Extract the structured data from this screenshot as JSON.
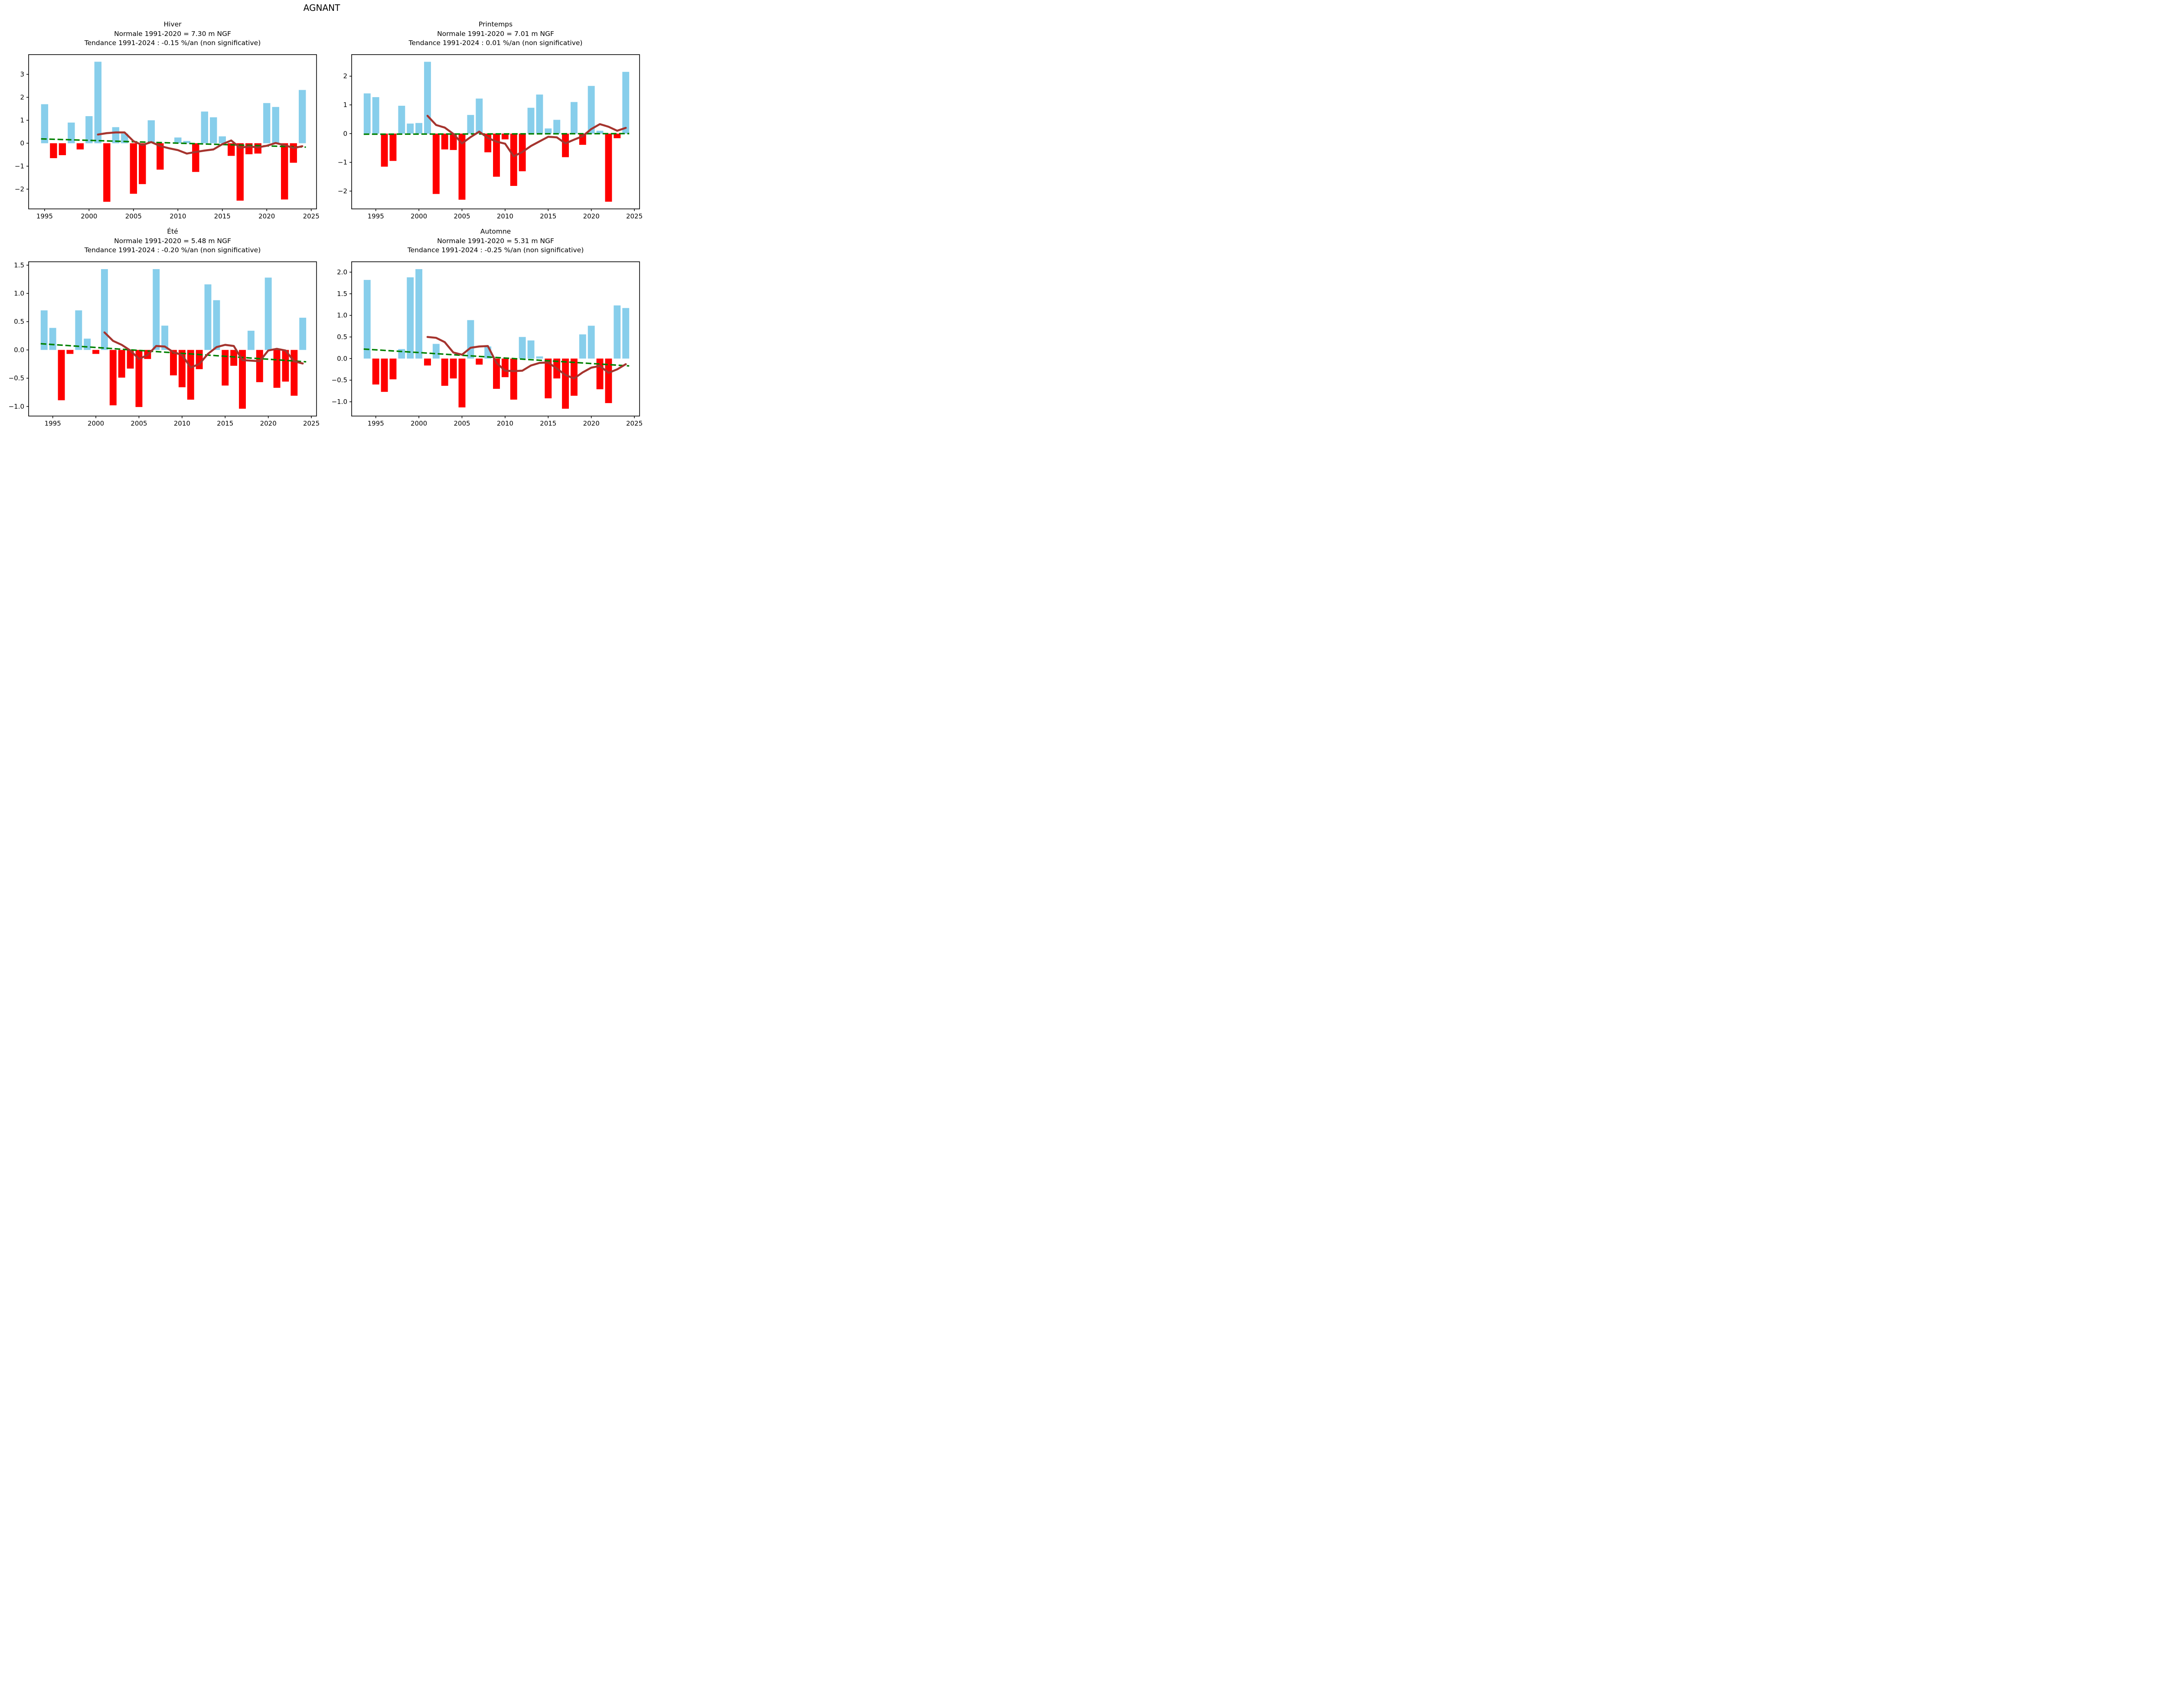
{
  "title": "AGNANT",
  "colors": {
    "positive_bar": "#87CEEB",
    "negative_bar": "#FF0000",
    "moving_average_line": "#A5342E",
    "trend_line": "#008000",
    "axis": "#000000",
    "background": "#FFFFFF"
  },
  "chart_data": [
    {
      "type": "bar",
      "season": "Hiver",
      "title_lines": [
        "Hiver",
        "Normale 1991-2020 = 7.30 m NGF",
        "Tendance 1991-2024 : -0.15 %/an (non significative)"
      ],
      "xlabel": "",
      "ylabel": "",
      "grid": false,
      "legend": "none",
      "x": [
        1995,
        1996,
        1997,
        1998,
        1999,
        2000,
        2001,
        2002,
        2003,
        2004,
        2005,
        2006,
        2007,
        2008,
        2009,
        2010,
        2011,
        2012,
        2013,
        2014,
        2015,
        2016,
        2017,
        2018,
        2019,
        2020,
        2021,
        2022,
        2023,
        2024
      ],
      "values": [
        1.7,
        -0.65,
        -0.52,
        0.9,
        -0.27,
        1.18,
        3.55,
        -2.55,
        0.7,
        0.42,
        -2.2,
        -1.78,
        1.0,
        -1.15,
        null,
        0.25,
        0.1,
        -1.25,
        1.38,
        1.13,
        0.3,
        -0.55,
        -2.5,
        -0.48,
        -0.45,
        1.75,
        1.58,
        -2.45,
        -0.85,
        2.32
      ],
      "moving_average": {
        "x": [
          2001,
          2002,
          2003,
          2004,
          2005,
          2006,
          2007,
          2008,
          2009,
          2010,
          2011,
          2012,
          2013,
          2014,
          2015,
          2016,
          2017,
          2018,
          2019,
          2020,
          2021,
          2022,
          2023,
          2024
        ],
        "values": [
          0.38,
          0.44,
          0.47,
          0.47,
          0.09,
          -0.08,
          0.05,
          -0.12,
          -0.22,
          -0.3,
          -0.45,
          -0.38,
          -0.32,
          -0.27,
          -0.04,
          0.12,
          -0.2,
          -0.14,
          -0.18,
          -0.11,
          0.01,
          -0.08,
          -0.21,
          -0.13
        ]
      },
      "trend_line": {
        "x": [
          1994.6,
          2024.4
        ],
        "y": [
          0.19,
          -0.17
        ]
      },
      "xticks": [
        1995,
        2000,
        2005,
        2010,
        2015,
        2020,
        2025
      ],
      "xtick_labels": [
        "1995",
        "2000",
        "2005",
        "2010",
        "2015",
        "2020",
        "2025"
      ],
      "yticks": [
        3,
        2,
        1,
        0,
        -1,
        -2
      ],
      "ytick_labels": [
        "3",
        "2",
        "1",
        "0",
        "−1",
        "−2"
      ],
      "xlim": [
        1993.2,
        2025.6
      ],
      "ylim": [
        -2.86,
        3.86
      ]
    },
    {
      "type": "bar",
      "season": "Printemps",
      "title_lines": [
        "Printemps",
        "Normale 1991-2020 = 7.01 m NGF",
        "Tendance 1991-2024 : 0.01 %/an (non significative)"
      ],
      "xlabel": "",
      "ylabel": "",
      "grid": false,
      "legend": "none",
      "x": [
        1994,
        1995,
        1996,
        1997,
        1998,
        1999,
        2000,
        2001,
        2002,
        2003,
        2004,
        2005,
        2006,
        2007,
        2008,
        2009,
        2010,
        2011,
        2012,
        2013,
        2014,
        2015,
        2016,
        2017,
        2018,
        2019,
        2020,
        2021,
        2022,
        2023,
        2024
      ],
      "values": [
        1.4,
        1.27,
        -1.15,
        -0.95,
        0.97,
        0.35,
        0.37,
        2.5,
        -2.1,
        -0.55,
        -0.57,
        -2.3,
        0.65,
        1.22,
        -0.65,
        -1.5,
        -0.2,
        -1.82,
        -1.31,
        0.9,
        1.36,
        0.18,
        0.48,
        -0.82,
        1.1,
        -0.39,
        1.66,
        0.1,
        -2.37,
        -0.16,
        2.15
      ],
      "moving_average": {
        "x": [
          2001,
          2002,
          2003,
          2004,
          2005,
          2006,
          2007,
          2008,
          2009,
          2010,
          2011,
          2012,
          2013,
          2014,
          2015,
          2016,
          2017,
          2018,
          2019,
          2020,
          2021,
          2022,
          2023,
          2024
        ],
        "values": [
          0.62,
          0.3,
          0.21,
          -0.01,
          -0.34,
          -0.12,
          0.07,
          -0.15,
          -0.28,
          -0.35,
          -0.79,
          -0.64,
          -0.43,
          -0.27,
          -0.11,
          -0.13,
          -0.34,
          -0.21,
          -0.09,
          0.16,
          0.33,
          0.24,
          0.1,
          0.2
        ]
      },
      "trend_line": {
        "x": [
          1993.6,
          2024.4
        ],
        "y": [
          -0.02,
          0.0
        ]
      },
      "xticks": [
        1995,
        2000,
        2005,
        2010,
        2015,
        2020,
        2025
      ],
      "xtick_labels": [
        "1995",
        "2000",
        "2005",
        "2010",
        "2015",
        "2020",
        "2025"
      ],
      "yticks": [
        2,
        1,
        0,
        -1,
        -2
      ],
      "ytick_labels": [
        "2",
        "1",
        "0",
        "−1",
        "−2"
      ],
      "xlim": [
        1992.2,
        2025.6
      ],
      "ylim": [
        -2.62,
        2.75
      ]
    },
    {
      "type": "bar",
      "season": "Été",
      "title_lines": [
        "Été",
        "Normale 1991-2020 = 5.48 m NGF",
        "Tendance 1991-2024 : -0.20 %/an (non significative)"
      ],
      "xlabel": "",
      "ylabel": "",
      "grid": false,
      "legend": "none",
      "x": [
        1994,
        1995,
        1996,
        1997,
        1998,
        1999,
        2000,
        2001,
        2002,
        2003,
        2004,
        2005,
        2006,
        2007,
        2008,
        2009,
        2010,
        2011,
        2012,
        2013,
        2014,
        2015,
        2016,
        2017,
        2018,
        2019,
        2020,
        2021,
        2022,
        2023,
        2024
      ],
      "values": [
        0.7,
        0.39,
        -0.89,
        -0.07,
        0.7,
        0.2,
        -0.07,
        1.43,
        -0.98,
        -0.49,
        -0.33,
        -1.01,
        -0.16,
        1.43,
        0.43,
        -0.45,
        -0.66,
        -0.88,
        -0.34,
        1.16,
        0.88,
        -0.63,
        -0.28,
        -1.04,
        0.34,
        -0.57,
        1.28,
        -0.67,
        -0.56,
        -0.81,
        0.57
      ],
      "moving_average": {
        "x": [
          2001,
          2002,
          2003,
          2004,
          2005,
          2006,
          2007,
          2008,
          2009,
          2010,
          2011,
          2012,
          2013,
          2014,
          2015,
          2016,
          2017,
          2018,
          2019,
          2020,
          2021,
          2022,
          2023,
          2024
        ],
        "values": [
          0.31,
          0.16,
          0.09,
          -0.01,
          -0.16,
          -0.09,
          0.07,
          0.06,
          -0.04,
          -0.09,
          -0.31,
          -0.25,
          -0.07,
          0.05,
          0.09,
          0.07,
          -0.18,
          -0.19,
          -0.2,
          -0.01,
          0.02,
          -0.01,
          -0.2,
          -0.24
        ]
      },
      "trend_line": {
        "x": [
          1993.6,
          2024.4
        ],
        "y": [
          0.11,
          -0.21
        ]
      },
      "xticks": [
        1995,
        2000,
        2005,
        2010,
        2015,
        2020,
        2025
      ],
      "xtick_labels": [
        "1995",
        "2000",
        "2005",
        "2010",
        "2015",
        "2020",
        "2025"
      ],
      "yticks": [
        1.5,
        1.0,
        0.5,
        0.0,
        -0.5,
        -1.0
      ],
      "ytick_labels": [
        "1.5",
        "1.0",
        "0.5",
        "0.0",
        "−0.5",
        "−1.0"
      ],
      "xlim": [
        1992.2,
        2025.6
      ],
      "ylim": [
        -1.17,
        1.56
      ]
    },
    {
      "type": "bar",
      "season": "Automne",
      "title_lines": [
        "Automne",
        "Normale 1991-2020 = 5.31 m NGF",
        "Tendance 1991-2024 : -0.25 %/an (non significative)"
      ],
      "xlabel": "",
      "ylabel": "",
      "grid": false,
      "legend": "none",
      "x": [
        1994,
        1995,
        1996,
        1997,
        1998,
        1999,
        2000,
        2001,
        2002,
        2003,
        2004,
        2005,
        2006,
        2007,
        2008,
        2009,
        2010,
        2011,
        2012,
        2013,
        2014,
        2015,
        2016,
        2017,
        2018,
        2019,
        2020,
        2021,
        2022,
        2023,
        2024
      ],
      "values": [
        1.82,
        -0.6,
        -0.77,
        -0.48,
        0.22,
        1.88,
        2.07,
        -0.16,
        0.34,
        -0.63,
        -0.46,
        -1.13,
        0.89,
        -0.14,
        0.28,
        -0.7,
        -0.43,
        -0.95,
        0.5,
        0.42,
        0.05,
        -0.92,
        -0.46,
        -1.16,
        -0.86,
        0.56,
        0.76,
        -0.71,
        -1.03,
        1.23,
        1.17
      ],
      "moving_average": {
        "x": [
          2001,
          2002,
          2003,
          2004,
          2005,
          2006,
          2007,
          2008,
          2009,
          2010,
          2011,
          2012,
          2013,
          2014,
          2015,
          2016,
          2017,
          2018,
          2019,
          2020,
          2021,
          2022,
          2023,
          2024
        ],
        "values": [
          0.5,
          0.48,
          0.38,
          0.14,
          0.09,
          0.25,
          0.28,
          0.29,
          -0.1,
          -0.28,
          -0.29,
          -0.28,
          -0.16,
          -0.1,
          -0.09,
          -0.23,
          -0.38,
          -0.46,
          -0.32,
          -0.21,
          -0.17,
          -0.33,
          -0.25,
          -0.13
        ]
      },
      "trend_line": {
        "x": [
          1993.6,
          2024.4
        ],
        "y": [
          0.22,
          -0.17
        ]
      },
      "xticks": [
        1995,
        2000,
        2005,
        2010,
        2015,
        2020,
        2025
      ],
      "xtick_labels": [
        "1995",
        "2000",
        "2005",
        "2010",
        "2015",
        "2020",
        "2025"
      ],
      "yticks": [
        2.0,
        1.5,
        1.0,
        0.5,
        0.0,
        -0.5,
        -1.0
      ],
      "ytick_labels": [
        "2.0",
        "1.5",
        "1.0",
        "0.5",
        "0.0",
        "−0.5",
        "−1.0"
      ],
      "xlim": [
        1992.2,
        2025.6
      ],
      "ylim": [
        -1.33,
        2.24
      ]
    }
  ]
}
